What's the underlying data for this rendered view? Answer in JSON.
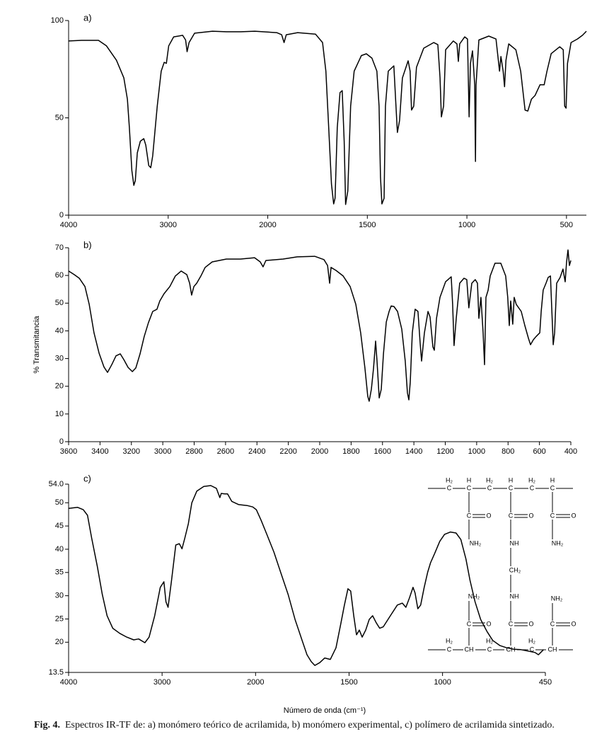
{
  "chart_data": [
    {
      "type": "line",
      "panel_label": "a)",
      "x": [
        4000,
        3870,
        3700,
        3620,
        3520,
        3445,
        3410,
        3390,
        3365,
        3345,
        3330,
        3310,
        3280,
        3245,
        3225,
        3195,
        3175,
        3155,
        3110,
        3070,
        3040,
        3018,
        2995,
        2945,
        2855,
        2825,
        2810,
        2790,
        2735,
        2555,
        2415,
        2270,
        2130,
        1955,
        1930,
        1918,
        1907,
        1850,
        1760,
        1725,
        1708,
        1694,
        1680,
        1669,
        1662,
        1651,
        1637,
        1626,
        1616,
        1609,
        1598,
        1584,
        1566,
        1530,
        1505,
        1477,
        1452,
        1441,
        1434,
        1427,
        1416,
        1409,
        1395,
        1367,
        1356,
        1349,
        1338,
        1324,
        1295,
        1285,
        1278,
        1267,
        1253,
        1217,
        1167,
        1146,
        1135,
        1128,
        1117,
        1107,
        1068,
        1050,
        1043,
        1036,
        1011,
        997,
        989,
        982,
        972,
        961,
        957,
        954,
        940,
        890,
        854,
        836,
        829,
        818,
        811,
        804,
        790,
        754,
        730,
        708,
        694,
        676,
        658,
        633,
        612,
        598,
        577,
        534,
        516,
        509,
        502,
        495,
        477,
        445,
        420,
        400
      ],
      "series": [
        {
          "color": "#000000",
          "values": [
            89.5,
            89.8,
            89.8,
            87,
            79.6,
            70.5,
            59.6,
            45,
            23,
            15.3,
            17.8,
            32,
            38,
            39.3,
            36,
            25.5,
            24.4,
            30.5,
            56,
            74,
            78.5,
            78,
            87,
            91.6,
            92.4,
            90,
            84,
            88.7,
            93.5,
            94.5,
            94.2,
            94.2,
            94.5,
            93.8,
            92.7,
            88.7,
            92.7,
            93.8,
            93,
            88.7,
            74,
            45,
            16,
            5.8,
            8.7,
            45,
            63,
            64,
            37.8,
            5.5,
            12.4,
            56,
            74,
            82,
            82.9,
            80.7,
            74,
            56,
            19.6,
            5.8,
            8.7,
            56,
            74,
            76.7,
            56,
            42.5,
            48.7,
            70.5,
            79.3,
            74,
            54,
            56,
            76,
            85.8,
            88.7,
            87.6,
            70.5,
            50.5,
            56,
            85,
            89.5,
            88,
            79,
            88,
            91.6,
            90.5,
            50.5,
            78,
            84.4,
            67,
            27.6,
            67,
            90,
            92,
            90.5,
            74,
            81.5,
            74,
            66,
            79.6,
            88,
            85,
            74,
            54,
            53.5,
            59.6,
            61.5,
            67,
            67,
            74,
            83,
            86.5,
            85,
            56,
            55,
            78,
            88.7,
            90.5,
            92.4,
            94.5
          ]
        }
      ],
      "xlim": [
        4000,
        400
      ],
      "ylim": [
        0,
        100
      ],
      "xticks": [
        4000,
        3000,
        2000,
        1500,
        1000,
        500
      ],
      "yticks": [
        0,
        50,
        100
      ],
      "x_scale_break": 2000
    },
    {
      "type": "line",
      "panel_label": "b)",
      "y_label": "% Transmitancia",
      "x": [
        3600,
        3564,
        3532,
        3496,
        3469,
        3438,
        3406,
        3375,
        3352,
        3325,
        3298,
        3271,
        3248,
        3221,
        3194,
        3172,
        3145,
        3118,
        3091,
        3064,
        3037,
        3019,
        2992,
        2955,
        2920,
        2883,
        2847,
        2829,
        2816,
        2802,
        2784,
        2757,
        2730,
        2685,
        2595,
        2505,
        2415,
        2379,
        2361,
        2343,
        2234,
        2144,
        2032,
        1973,
        1950,
        1937,
        1928,
        1896,
        1851,
        1806,
        1770,
        1739,
        1712,
        1694,
        1685,
        1671,
        1657,
        1644,
        1635,
        1621,
        1608,
        1594,
        1576,
        1558,
        1545,
        1527,
        1504,
        1477,
        1455,
        1441,
        1432,
        1423,
        1410,
        1392,
        1374,
        1360,
        1351,
        1333,
        1310,
        1297,
        1279,
        1270,
        1256,
        1234,
        1198,
        1162,
        1153,
        1144,
        1130,
        1108,
        1081,
        1063,
        1050,
        1031,
        1009,
        995,
        986,
        973,
        959,
        950,
        941,
        927,
        914,
        883,
        846,
        815,
        802,
        792,
        783,
        770,
        761,
        748,
        716,
        693,
        670,
        657,
        639,
        621,
        598,
        589,
        576,
        558,
        544,
        530,
        521,
        512,
        503,
        490,
        468,
        450,
        436,
        427,
        418,
        409,
        400
      ],
      "series": [
        {
          "color": "#000000",
          "values": [
            61.6,
            60.3,
            59,
            56,
            49.6,
            39.3,
            32,
            27,
            25,
            27.8,
            31,
            31.7,
            29.6,
            26.8,
            25.3,
            26.6,
            31.7,
            38,
            43,
            47,
            47.8,
            50.8,
            53.4,
            56,
            59.8,
            61.6,
            60.3,
            57.2,
            52.9,
            56,
            57.2,
            59.8,
            62.9,
            64.9,
            65.9,
            65.9,
            66.4,
            64.9,
            63.1,
            65.4,
            65.9,
            66.7,
            66.9,
            65.7,
            63.6,
            57.2,
            62.9,
            61.8,
            59.8,
            56,
            49.6,
            39.3,
            26.6,
            16.4,
            14.6,
            18.9,
            26.6,
            36.3,
            29.1,
            15.8,
            18.9,
            31.7,
            43.2,
            47,
            49,
            48.8,
            47,
            40.6,
            29.1,
            17.6,
            15.1,
            21.5,
            39.3,
            47.8,
            47,
            35.5,
            29.1,
            39.3,
            47,
            45,
            34.2,
            33,
            44.5,
            52.1,
            57.7,
            59.5,
            49.6,
            34.7,
            44.5,
            57.2,
            59,
            58.5,
            48.3,
            57.2,
            58.5,
            57.2,
            44.5,
            52.1,
            39.3,
            27.8,
            52.1,
            54.7,
            59.8,
            64.4,
            64.4,
            59.8,
            52.1,
            41.9,
            50.8,
            42.4,
            52.1,
            49.6,
            47,
            41.9,
            37.3,
            35,
            36.8,
            38,
            39.3,
            47,
            54.7,
            57.2,
            59.3,
            59.8,
            47,
            35,
            39.3,
            57.2,
            59.3,
            62.3,
            57.7,
            64.9,
            69.2,
            63.6,
            65.4
          ]
        }
      ],
      "xlim": [
        3600,
        400
      ],
      "ylim": [
        0,
        70
      ],
      "xticks": [
        3600,
        3400,
        3200,
        3000,
        2800,
        2600,
        2400,
        2200,
        2000,
        1800,
        1600,
        1400,
        1200,
        1000,
        800,
        600,
        400
      ],
      "yticks": [
        0,
        10,
        20,
        30,
        40,
        50,
        60,
        70
      ]
    },
    {
      "type": "line",
      "panel_label": "c)",
      "x_label": "Número de onda (cm⁻¹)",
      "x": [
        4000,
        3903,
        3843,
        3798,
        3753,
        3693,
        3640,
        3588,
        3528,
        3453,
        3378,
        3303,
        3251,
        3184,
        3139,
        3079,
        3019,
        2981,
        2959,
        2936,
        2899,
        2854,
        2816,
        2787,
        2757,
        2719,
        2682,
        2629,
        2554,
        2479,
        2419,
        2382,
        2367,
        2330,
        2300,
        2255,
        2180,
        2090,
        2030,
        1996,
        1970,
        1940,
        1902,
        1864,
        1826,
        1789,
        1751,
        1725,
        1702,
        1683,
        1657,
        1630,
        1600,
        1570,
        1543,
        1525,
        1506,
        1491,
        1475,
        1460,
        1445,
        1430,
        1411,
        1392,
        1374,
        1355,
        1336,
        1317,
        1279,
        1242,
        1215,
        1196,
        1177,
        1158,
        1147,
        1132,
        1117,
        1098,
        1079,
        1064,
        1042,
        1015,
        989,
        958,
        928,
        902,
        875,
        853,
        826,
        796,
        762,
        732,
        694,
        657,
        619,
        581,
        543,
        506,
        487,
        460
      ],
      "series": [
        {
          "color": "#000000",
          "values": [
            48.8,
            49,
            48.5,
            47.3,
            42.4,
            36.3,
            30.3,
            25.7,
            23,
            21.9,
            21.1,
            20.5,
            20.7,
            19.9,
            21.1,
            25.7,
            31.8,
            33,
            28.7,
            27.5,
            33.3,
            40.9,
            41.2,
            40.1,
            42.4,
            45.5,
            50,
            52.5,
            53.5,
            53.7,
            53.1,
            51.1,
            52,
            51.9,
            51.9,
            50.3,
            49.6,
            49.4,
            49.1,
            48.5,
            46.2,
            43.2,
            39.4,
            34.8,
            30.3,
            24.9,
            20.4,
            17.3,
            15.8,
            15,
            15.6,
            16.6,
            16.3,
            18.8,
            24.2,
            28,
            31.5,
            31,
            25.7,
            21.6,
            22.6,
            21.1,
            22.6,
            24.9,
            25.7,
            24.2,
            23,
            23.3,
            25.7,
            28,
            28.4,
            27.5,
            29.5,
            31.8,
            30.6,
            27.2,
            28,
            31.8,
            35.1,
            37.1,
            39.1,
            41.7,
            43.2,
            43.7,
            43.5,
            42.1,
            37.9,
            33.3,
            28.7,
            24.9,
            22.3,
            20.4,
            19.3,
            18.8,
            18.5,
            18.4,
            18.1,
            17.8,
            17.3,
            18.4
          ]
        }
      ],
      "xlim": [
        4000,
        450
      ],
      "ylim": [
        13.5,
        54
      ],
      "xticks": [
        4000,
        3000,
        2000,
        1500,
        1000,
        450
      ],
      "yticks": [
        13.5,
        20,
        25,
        30,
        35,
        40,
        45,
        50,
        {
          "value": 54,
          "label": "54.0"
        }
      ],
      "x_scale_break": 2000
    }
  ],
  "structure": {
    "labels": [
      "H₂",
      "C",
      "H",
      "C",
      "H₂",
      "C",
      "H",
      "C",
      "H₂",
      "C",
      "H",
      "C",
      "C",
      "O",
      "C",
      "O",
      "C",
      "O",
      "NH₂",
      "NH",
      "NH₂",
      "CH₂",
      "NH₂",
      "NH",
      "NH₂",
      "C",
      "O",
      "C",
      "O",
      "C",
      "O",
      "H₂",
      "C",
      "CH",
      "H₂",
      "C",
      "CH",
      "H₂",
      "C",
      "CH"
    ]
  },
  "caption": {
    "label": "Fig. 4.",
    "text": "Espectros IR-TF de: a) monómero teórico de acrilamida, b) monómero experimental, c) polímero de acrilamida sintetizado."
  }
}
